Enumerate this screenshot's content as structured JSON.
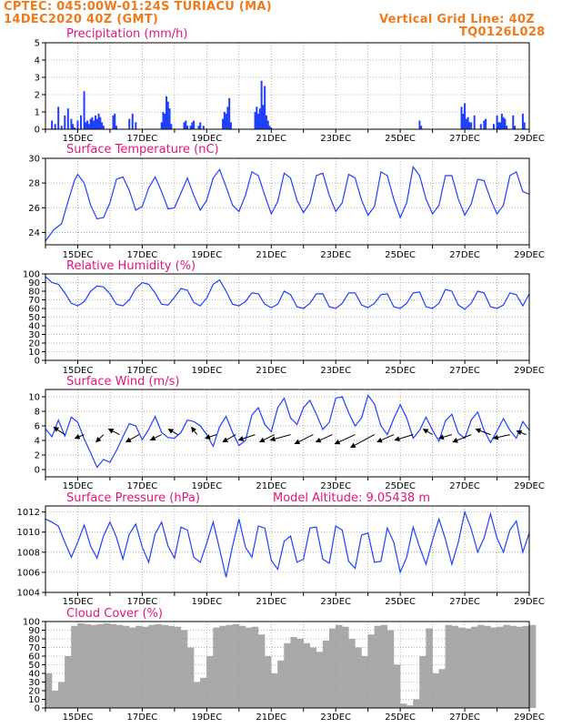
{
  "header": {
    "line1_left": "CPTEC:   045:00W-01:24S   TURIACU (MA)",
    "line2_left": "14DEC2020 40Z (GMT)",
    "line1_right": "Vertical Grid Line: 40Z",
    "line2_right": "TQ0126L028"
  },
  "colors": {
    "header": "#f07a1a",
    "title": "#e0147f",
    "series": "#1f3fff",
    "cloud": "#a9a9a9",
    "grid": "#9a9a9a"
  },
  "x_tick_labels": [
    "15DEC",
    "17DEC",
    "19DEC",
    "21DEC",
    "23DEC",
    "25DEC",
    "27DEC",
    "29DEC"
  ],
  "chart_data": [
    {
      "type": "bar",
      "title": "Precipitation (mm/h)",
      "xlim": [
        14,
        29
      ],
      "ylim": [
        0,
        5
      ],
      "yticks": [
        0,
        1,
        2,
        3,
        4,
        5
      ],
      "x": [
        14.2,
        14.3,
        14.4,
        14.5,
        14.6,
        14.7,
        14.8,
        14.85,
        14.9,
        15.0,
        15.1,
        15.2,
        15.25,
        15.3,
        15.35,
        15.4,
        15.45,
        15.5,
        15.55,
        15.6,
        15.65,
        15.7,
        15.75,
        15.8,
        16.1,
        16.15,
        16.2,
        16.6,
        16.7,
        16.8,
        17.6,
        17.65,
        17.7,
        17.75,
        17.8,
        17.85,
        17.9,
        18.3,
        18.35,
        18.4,
        18.5,
        18.55,
        18.6,
        18.75,
        18.8,
        18.9,
        19.5,
        19.55,
        19.6,
        19.65,
        19.7,
        19.75,
        20.5,
        20.55,
        20.6,
        20.65,
        20.7,
        20.75,
        20.8,
        20.85,
        20.9,
        20.95,
        21.0,
        25.6,
        25.65,
        26.9,
        26.95,
        27.0,
        27.05,
        27.1,
        27.15,
        27.2,
        27.3,
        27.5,
        27.6,
        27.65,
        27.9,
        28.0,
        28.05,
        28.1,
        28.15,
        28.2,
        28.25,
        28.3,
        28.5,
        28.55,
        28.8,
        28.85
      ],
      "values": [
        0.5,
        0.3,
        1.3,
        0.2,
        0.8,
        1.2,
        0.6,
        0.3,
        0.1,
        0.5,
        0.8,
        2.2,
        0.4,
        0.5,
        0.3,
        0.6,
        0.7,
        0.5,
        0.8,
        0.6,
        0.9,
        0.7,
        0.4,
        0.2,
        0.8,
        0.9,
        0.2,
        0.6,
        0.9,
        0.4,
        0.4,
        1.0,
        0.9,
        1.9,
        1.6,
        1.2,
        0.3,
        0.4,
        0.5,
        0.2,
        0.2,
        0.4,
        0.5,
        0.2,
        0.4,
        0.2,
        0.6,
        1.0,
        0.9,
        1.3,
        1.8,
        0.4,
        1.0,
        1.3,
        0.9,
        1.2,
        2.8,
        1.4,
        2.5,
        0.8,
        0.5,
        0.2,
        0.1,
        0.5,
        0.2,
        1.3,
        0.9,
        1.5,
        0.6,
        0.7,
        0.4,
        0.4,
        0.8,
        0.3,
        0.5,
        0.6,
        0.3,
        0.8,
        0.4,
        0.4,
        0.9,
        0.7,
        0.6,
        0.2,
        0.8,
        0.2,
        0.9,
        0.4
      ]
    },
    {
      "type": "line",
      "title": "Surface Temperature (nC)",
      "xlim": [
        14,
        29
      ],
      "ylim": [
        23,
        30
      ],
      "yticks": [
        24,
        26,
        28,
        30
      ],
      "x": [
        14.0,
        14.25,
        14.5,
        14.7,
        14.9,
        15.0,
        15.2,
        15.4,
        15.6,
        15.8,
        16.0,
        16.2,
        16.4,
        16.6,
        16.8,
        17.0,
        17.2,
        17.4,
        17.6,
        17.8,
        18.0,
        18.2,
        18.4,
        18.6,
        18.8,
        19.0,
        19.2,
        19.4,
        19.6,
        19.8,
        20.0,
        20.2,
        20.4,
        20.6,
        20.8,
        21.0,
        21.2,
        21.4,
        21.6,
        21.8,
        22.0,
        22.2,
        22.4,
        22.6,
        22.8,
        23.0,
        23.2,
        23.4,
        23.6,
        23.8,
        24.0,
        24.2,
        24.4,
        24.6,
        24.8,
        25.0,
        25.2,
        25.4,
        25.6,
        25.8,
        26.0,
        26.2,
        26.4,
        26.6,
        26.8,
        27.0,
        27.2,
        27.4,
        27.6,
        27.8,
        28.0,
        28.2,
        28.4,
        28.6,
        28.8,
        29.0
      ],
      "values": [
        23.3,
        24.2,
        24.7,
        26.5,
        28.2,
        28.7,
        28.0,
        26.2,
        25.1,
        25.2,
        26.4,
        28.3,
        28.5,
        27.4,
        25.8,
        26.1,
        27.6,
        28.5,
        27.3,
        25.9,
        26.0,
        27.2,
        28.4,
        27.0,
        25.8,
        26.6,
        28.4,
        29.1,
        27.7,
        26.2,
        25.7,
        27.0,
        28.9,
        28.6,
        27.0,
        25.5,
        26.5,
        28.8,
        28.4,
        26.6,
        25.6,
        26.4,
        28.6,
        28.8,
        27.0,
        25.7,
        26.4,
        28.7,
        28.4,
        26.6,
        25.4,
        26.1,
        28.9,
        28.6,
        26.7,
        25.2,
        26.4,
        29.3,
        28.6,
        26.7,
        25.5,
        26.2,
        28.6,
        28.6,
        26.7,
        25.4,
        26.3,
        28.3,
        28.2,
        26.7,
        25.5,
        26.2,
        28.6,
        28.9,
        27.3,
        27.1
      ]
    },
    {
      "type": "line",
      "title": "Relative Humidity (%)",
      "xlim": [
        14,
        29
      ],
      "ylim": [
        0,
        100
      ],
      "yticks": [
        0,
        10,
        20,
        30,
        40,
        50,
        60,
        70,
        80,
        90,
        100
      ],
      "x": [
        14.0,
        14.2,
        14.4,
        14.6,
        14.8,
        15.0,
        15.2,
        15.4,
        15.6,
        15.8,
        16.0,
        16.2,
        16.4,
        16.6,
        16.8,
        17.0,
        17.2,
        17.4,
        17.6,
        17.8,
        18.0,
        18.2,
        18.4,
        18.6,
        18.8,
        19.0,
        19.2,
        19.4,
        19.6,
        19.8,
        20.0,
        20.2,
        20.4,
        20.6,
        20.8,
        21.0,
        21.2,
        21.4,
        21.6,
        21.8,
        22.0,
        22.2,
        22.4,
        22.6,
        22.8,
        23.0,
        23.2,
        23.4,
        23.6,
        23.8,
        24.0,
        24.2,
        24.4,
        24.6,
        24.8,
        25.0,
        25.2,
        25.4,
        25.6,
        25.8,
        26.0,
        26.2,
        26.4,
        26.6,
        26.8,
        27.0,
        27.2,
        27.4,
        27.6,
        27.8,
        28.0,
        28.2,
        28.4,
        28.6,
        28.8,
        29.0
      ],
      "values": [
        97,
        90,
        88,
        78,
        66,
        63,
        68,
        80,
        86,
        85,
        77,
        65,
        63,
        70,
        83,
        90,
        88,
        78,
        65,
        64,
        73,
        83,
        81,
        67,
        63,
        72,
        88,
        93,
        80,
        65,
        63,
        68,
        78,
        77,
        65,
        61,
        65,
        80,
        76,
        62,
        60,
        66,
        77,
        77,
        62,
        60,
        66,
        78,
        78,
        64,
        61,
        66,
        76,
        77,
        62,
        60,
        66,
        78,
        79,
        62,
        60,
        66,
        82,
        80,
        64,
        59,
        66,
        80,
        78,
        62,
        60,
        64,
        78,
        76,
        63,
        77
      ]
    },
    {
      "type": "line",
      "title": "Surface Wind (m/s)",
      "xlim": [
        14,
        29
      ],
      "ylim": [
        -1,
        11
      ],
      "yticks": [
        0,
        2,
        4,
        6,
        8,
        10
      ],
      "x": [
        14.0,
        14.2,
        14.4,
        14.6,
        14.8,
        15.0,
        15.2,
        15.4,
        15.6,
        15.8,
        16.0,
        16.2,
        16.4,
        16.6,
        16.8,
        17.0,
        17.2,
        17.4,
        17.6,
        17.8,
        18.0,
        18.2,
        18.4,
        18.6,
        18.8,
        19.0,
        19.2,
        19.4,
        19.6,
        19.8,
        20.0,
        20.2,
        20.4,
        20.6,
        20.8,
        21.0,
        21.2,
        21.4,
        21.6,
        21.8,
        22.0,
        22.2,
        22.4,
        22.6,
        22.8,
        23.0,
        23.2,
        23.4,
        23.6,
        23.8,
        24.0,
        24.2,
        24.4,
        24.6,
        24.8,
        25.0,
        25.2,
        25.4,
        25.6,
        25.8,
        26.0,
        26.2,
        26.4,
        26.6,
        26.8,
        27.0,
        27.2,
        27.4,
        27.6,
        27.8,
        28.0,
        28.2,
        28.4,
        28.6,
        28.8,
        29.0
      ],
      "values": [
        5.6,
        4.5,
        6.8,
        4.6,
        7.2,
        6.5,
        4.2,
        2.3,
        0.3,
        1.4,
        1.0,
        2.6,
        4.5,
        6.3,
        6.0,
        4.1,
        5.5,
        7.3,
        5.1,
        4.4,
        4.3,
        5.1,
        6.8,
        6.6,
        6.0,
        4.8,
        3.2,
        5.9,
        7.3,
        5.1,
        3.3,
        4.0,
        7.5,
        8.5,
        6.2,
        5.2,
        8.5,
        9.8,
        7.1,
        6.2,
        8.5,
        9.5,
        7.6,
        5.5,
        6.5,
        9.8,
        10.0,
        7.8,
        6.0,
        7.1,
        10.2,
        9.0,
        6.0,
        4.8,
        7.0,
        8.9,
        7.1,
        4.3,
        5.4,
        7.2,
        5.4,
        3.9,
        6.7,
        7.6,
        5.0,
        4.3,
        6.8,
        7.9,
        5.4,
        3.7,
        5.3,
        7.0,
        5.4,
        4.3,
        6.6,
        5.4
      ]
    },
    {
      "type": "line",
      "title": "Surface Pressure (hPa)",
      "annotation": "Model Altitude: 9.05438 m",
      "xlim": [
        14,
        29
      ],
      "ylim": [
        1004,
        1012.6
      ],
      "yticks": [
        1004,
        1006,
        1008,
        1010,
        1012
      ],
      "x": [
        14.0,
        14.2,
        14.4,
        14.6,
        14.8,
        15.0,
        15.2,
        15.4,
        15.6,
        15.8,
        16.0,
        16.2,
        16.4,
        16.6,
        16.8,
        17.0,
        17.2,
        17.4,
        17.6,
        17.8,
        18.0,
        18.2,
        18.4,
        18.6,
        18.8,
        19.0,
        19.2,
        19.4,
        19.6,
        19.8,
        20.0,
        20.2,
        20.4,
        20.6,
        20.8,
        21.0,
        21.2,
        21.4,
        21.6,
        21.8,
        22.0,
        22.2,
        22.4,
        22.6,
        22.8,
        23.0,
        23.2,
        23.4,
        23.6,
        23.8,
        24.0,
        24.2,
        24.4,
        24.6,
        24.8,
        25.0,
        25.2,
        25.4,
        25.6,
        25.8,
        26.0,
        26.2,
        26.4,
        26.6,
        26.8,
        27.0,
        27.2,
        27.4,
        27.6,
        27.8,
        28.0,
        28.2,
        28.4,
        28.6,
        28.8,
        29.0
      ],
      "values": [
        1011.3,
        1011.0,
        1010.6,
        1009.0,
        1007.5,
        1009.0,
        1010.7,
        1008.6,
        1007.4,
        1009.6,
        1011.0,
        1009.5,
        1007.3,
        1009.8,
        1010.8,
        1008.5,
        1007.0,
        1009.8,
        1011.0,
        1008.6,
        1007.4,
        1010.5,
        1010.2,
        1007.5,
        1007.0,
        1008.9,
        1011.0,
        1008.3,
        1005.5,
        1008.6,
        1011.3,
        1008.5,
        1007.5,
        1010.6,
        1010.4,
        1007.2,
        1006.3,
        1009.1,
        1009.6,
        1007.0,
        1007.3,
        1010.4,
        1010.5,
        1007.3,
        1006.9,
        1010.6,
        1010.2,
        1007.1,
        1006.4,
        1009.7,
        1009.9,
        1007.0,
        1007.1,
        1010.4,
        1009.0,
        1006.0,
        1007.5,
        1010.5,
        1008.5,
        1006.8,
        1009.2,
        1011.3,
        1009.3,
        1006.8,
        1009.0,
        1012.0,
        1010.3,
        1008.0,
        1009.4,
        1011.8,
        1009.4,
        1008.0,
        1010.2,
        1011.1,
        1008.0,
        1009.9
      ]
    },
    {
      "type": "bar",
      "title": "Cloud Cover (%)",
      "xlim": [
        14,
        29
      ],
      "ylim": [
        0,
        100
      ],
      "yticks": [
        0,
        10,
        20,
        30,
        40,
        50,
        60,
        70,
        80,
        90,
        100
      ],
      "x": [
        14.0,
        14.2,
        14.4,
        14.6,
        14.8,
        15.0,
        15.2,
        15.4,
        15.6,
        15.8,
        16.0,
        16.2,
        16.4,
        16.6,
        16.8,
        17.0,
        17.2,
        17.4,
        17.6,
        17.8,
        18.0,
        18.2,
        18.4,
        18.6,
        18.8,
        19.0,
        19.2,
        19.4,
        19.6,
        19.8,
        20.0,
        20.2,
        20.4,
        20.6,
        20.8,
        21.0,
        21.2,
        21.4,
        21.6,
        21.8,
        22.0,
        22.2,
        22.4,
        22.6,
        22.8,
        23.0,
        23.2,
        23.4,
        23.6,
        23.8,
        24.0,
        24.2,
        24.4,
        24.6,
        24.8,
        25.0,
        25.2,
        25.4,
        25.6,
        25.8,
        26.0,
        26.2,
        26.4,
        26.6,
        26.8,
        27.0,
        27.2,
        27.4,
        27.6,
        27.8,
        28.0,
        28.2,
        28.4,
        28.6,
        28.8,
        29.0
      ],
      "values": [
        40,
        20,
        30,
        60,
        95,
        98,
        97,
        96,
        97,
        98,
        97,
        96,
        95,
        93,
        95,
        94,
        96,
        97,
        96,
        95,
        94,
        90,
        70,
        30,
        35,
        60,
        93,
        95,
        96,
        97,
        95,
        93,
        94,
        85,
        60,
        40,
        55,
        75,
        82,
        80,
        75,
        70,
        65,
        78,
        92,
        96,
        94,
        80,
        70,
        60,
        85,
        95,
        96,
        90,
        50,
        5,
        3,
        10,
        60,
        92,
        40,
        45,
        96,
        95,
        93,
        92,
        94,
        96,
        95,
        93,
        94,
        96,
        95,
        94,
        95,
        96
      ]
    }
  ]
}
